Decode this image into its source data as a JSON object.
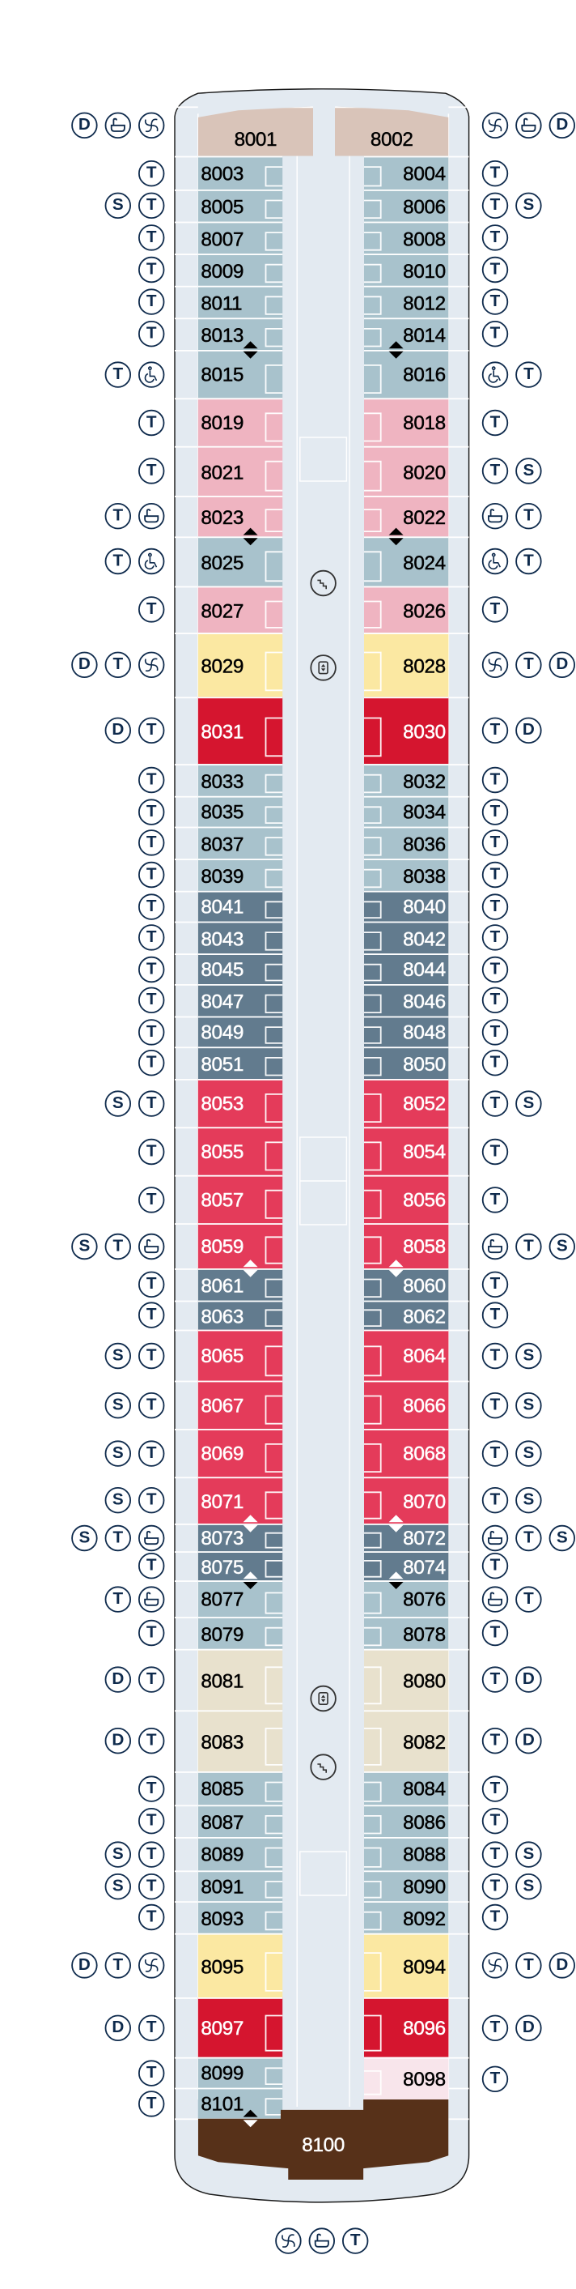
{
  "categories": {
    "tan": "#d9c4b9",
    "blue": "#a8c2cc",
    "pink": "#efb4c1",
    "yellow": "#fbe8a2",
    "crimson": "#d5152f",
    "slate": "#627b8e",
    "red": "#e43b5a",
    "beige": "#e8e1cd",
    "palepink": "#f8e5eb",
    "brown": "#573119"
  },
  "hull_color": "#e3eaf1",
  "icon_color": "#0e2a4c",
  "amenity_labels": {
    "D": "D",
    "T": "T",
    "S": "S"
  },
  "rows": [
    {
      "left": {
        "number": "8001",
        "category": "tan",
        "amenities": [
          "D",
          "bath",
          "spa"
        ]
      },
      "right": {
        "number": "8002",
        "category": "tan",
        "amenities": [
          "spa",
          "bath",
          "D"
        ]
      }
    },
    {
      "left": {
        "number": "8003",
        "category": "blue",
        "amenities": [
          "T"
        ]
      },
      "right": {
        "number": "8004",
        "category": "blue",
        "amenities": [
          "T"
        ]
      }
    },
    {
      "left": {
        "number": "8005",
        "category": "blue",
        "amenities": [
          "S",
          "T"
        ]
      },
      "right": {
        "number": "8006",
        "category": "blue",
        "amenities": [
          "T",
          "S"
        ]
      }
    },
    {
      "left": {
        "number": "8007",
        "category": "blue",
        "amenities": [
          "T"
        ]
      },
      "right": {
        "number": "8008",
        "category": "blue",
        "amenities": [
          "T"
        ]
      }
    },
    {
      "left": {
        "number": "8009",
        "category": "blue",
        "amenities": [
          "T"
        ]
      },
      "right": {
        "number": "8010",
        "category": "blue",
        "amenities": [
          "T"
        ]
      }
    },
    {
      "left": {
        "number": "8011",
        "category": "blue",
        "amenities": [
          "T"
        ]
      },
      "right": {
        "number": "8012",
        "category": "blue",
        "amenities": [
          "T"
        ]
      }
    },
    {
      "left": {
        "number": "8013",
        "category": "blue",
        "amenities": [
          "T"
        ]
      },
      "right": {
        "number": "8014",
        "category": "blue",
        "amenities": [
          "T"
        ]
      }
    },
    {
      "left": {
        "number": "8015",
        "category": "blue",
        "amenities": [
          "T",
          "wheelchair"
        ]
      },
      "right": {
        "number": "8016",
        "category": "blue",
        "amenities": [
          "wheelchair",
          "T"
        ]
      }
    },
    {
      "left": {
        "number": "8019",
        "category": "pink",
        "amenities": [
          "T"
        ]
      },
      "right": {
        "number": "8018",
        "category": "pink",
        "amenities": [
          "T"
        ]
      }
    },
    {
      "left": {
        "number": "8021",
        "category": "pink",
        "amenities": [
          "T"
        ]
      },
      "right": {
        "number": "8020",
        "category": "pink",
        "amenities": [
          "T",
          "S"
        ]
      }
    },
    {
      "left": {
        "number": "8023",
        "category": "pink",
        "amenities": [
          "T",
          "bath"
        ]
      },
      "right": {
        "number": "8022",
        "category": "pink",
        "amenities": [
          "bath",
          "T"
        ]
      }
    },
    {
      "left": {
        "number": "8025",
        "category": "blue",
        "amenities": [
          "T",
          "wheelchair"
        ]
      },
      "right": {
        "number": "8024",
        "category": "blue",
        "amenities": [
          "wheelchair",
          "T"
        ]
      }
    },
    {
      "left": {
        "number": "8027",
        "category": "pink",
        "amenities": [
          "T"
        ]
      },
      "right": {
        "number": "8026",
        "category": "pink",
        "amenities": [
          "T"
        ]
      }
    },
    {
      "left": {
        "number": "8029",
        "category": "yellow",
        "amenities": [
          "D",
          "T",
          "spa"
        ]
      },
      "right": {
        "number": "8028",
        "category": "yellow",
        "amenities": [
          "spa",
          "T",
          "D"
        ]
      }
    },
    {
      "left": {
        "number": "8031",
        "category": "crimson",
        "amenities": [
          "D",
          "T"
        ]
      },
      "right": {
        "number": "8030",
        "category": "crimson",
        "amenities": [
          "T",
          "D"
        ]
      }
    },
    {
      "left": {
        "number": "8033",
        "category": "blue",
        "amenities": [
          "T"
        ]
      },
      "right": {
        "number": "8032",
        "category": "blue",
        "amenities": [
          "T"
        ]
      }
    },
    {
      "left": {
        "number": "8035",
        "category": "blue",
        "amenities": [
          "T"
        ]
      },
      "right": {
        "number": "8034",
        "category": "blue",
        "amenities": [
          "T"
        ]
      }
    },
    {
      "left": {
        "number": "8037",
        "category": "blue",
        "amenities": [
          "T"
        ]
      },
      "right": {
        "number": "8036",
        "category": "blue",
        "amenities": [
          "T"
        ]
      }
    },
    {
      "left": {
        "number": "8039",
        "category": "blue",
        "amenities": [
          "T"
        ]
      },
      "right": {
        "number": "8038",
        "category": "blue",
        "amenities": [
          "T"
        ]
      }
    },
    {
      "left": {
        "number": "8041",
        "category": "slate",
        "amenities": [
          "T"
        ]
      },
      "right": {
        "number": "8040",
        "category": "slate",
        "amenities": [
          "T"
        ]
      }
    },
    {
      "left": {
        "number": "8043",
        "category": "slate",
        "amenities": [
          "T"
        ]
      },
      "right": {
        "number": "8042",
        "category": "slate",
        "amenities": [
          "T"
        ]
      }
    },
    {
      "left": {
        "number": "8045",
        "category": "slate",
        "amenities": [
          "T"
        ]
      },
      "right": {
        "number": "8044",
        "category": "slate",
        "amenities": [
          "T"
        ]
      }
    },
    {
      "left": {
        "number": "8047",
        "category": "slate",
        "amenities": [
          "T"
        ]
      },
      "right": {
        "number": "8046",
        "category": "slate",
        "amenities": [
          "T"
        ]
      }
    },
    {
      "left": {
        "number": "8049",
        "category": "slate",
        "amenities": [
          "T"
        ]
      },
      "right": {
        "number": "8048",
        "category": "slate",
        "amenities": [
          "T"
        ]
      }
    },
    {
      "left": {
        "number": "8051",
        "category": "slate",
        "amenities": [
          "T"
        ]
      },
      "right": {
        "number": "8050",
        "category": "slate",
        "amenities": [
          "T"
        ]
      }
    },
    {
      "left": {
        "number": "8053",
        "category": "red",
        "amenities": [
          "S",
          "T"
        ]
      },
      "right": {
        "number": "8052",
        "category": "red",
        "amenities": [
          "T",
          "S"
        ]
      }
    },
    {
      "left": {
        "number": "8055",
        "category": "red",
        "amenities": [
          "T"
        ]
      },
      "right": {
        "number": "8054",
        "category": "red",
        "amenities": [
          "T"
        ]
      }
    },
    {
      "left": {
        "number": "8057",
        "category": "red",
        "amenities": [
          "T"
        ]
      },
      "right": {
        "number": "8056",
        "category": "red",
        "amenities": [
          "T"
        ]
      }
    },
    {
      "left": {
        "number": "8059",
        "category": "red",
        "amenities": [
          "S",
          "T",
          "bath"
        ]
      },
      "right": {
        "number": "8058",
        "category": "red",
        "amenities": [
          "bath",
          "T",
          "S"
        ]
      }
    },
    {
      "left": {
        "number": "8061",
        "category": "slate",
        "amenities": [
          "T"
        ]
      },
      "right": {
        "number": "8060",
        "category": "slate",
        "amenities": [
          "T"
        ]
      }
    },
    {
      "left": {
        "number": "8063",
        "category": "slate",
        "amenities": [
          "T"
        ]
      },
      "right": {
        "number": "8062",
        "category": "slate",
        "amenities": [
          "T"
        ]
      }
    },
    {
      "left": {
        "number": "8065",
        "category": "red",
        "amenities": [
          "S",
          "T"
        ]
      },
      "right": {
        "number": "8064",
        "category": "red",
        "amenities": [
          "T",
          "S"
        ]
      }
    },
    {
      "left": {
        "number": "8067",
        "category": "red",
        "amenities": [
          "S",
          "T"
        ]
      },
      "right": {
        "number": "8066",
        "category": "red",
        "amenities": [
          "T",
          "S"
        ]
      }
    },
    {
      "left": {
        "number": "8069",
        "category": "red",
        "amenities": [
          "S",
          "T"
        ]
      },
      "right": {
        "number": "8068",
        "category": "red",
        "amenities": [
          "T",
          "S"
        ]
      }
    },
    {
      "left": {
        "number": "8071",
        "category": "red",
        "amenities": [
          "S",
          "T"
        ]
      },
      "right": {
        "number": "8070",
        "category": "red",
        "amenities": [
          "T",
          "S"
        ]
      }
    },
    {
      "left": {
        "number": "8073",
        "category": "slate",
        "amenities": [
          "S",
          "T",
          "bath"
        ]
      },
      "right": {
        "number": "8072",
        "category": "slate",
        "amenities": [
          "bath",
          "T",
          "S"
        ]
      }
    },
    {
      "left": {
        "number": "8075",
        "category": "slate",
        "amenities": [
          "T"
        ]
      },
      "right": {
        "number": "8074",
        "category": "slate",
        "amenities": [
          "T"
        ]
      }
    },
    {
      "left": {
        "number": "8077",
        "category": "blue",
        "amenities": [
          "T",
          "bath"
        ]
      },
      "right": {
        "number": "8076",
        "category": "blue",
        "amenities": [
          "bath",
          "T"
        ]
      }
    },
    {
      "left": {
        "number": "8079",
        "category": "blue",
        "amenities": [
          "T"
        ]
      },
      "right": {
        "number": "8078",
        "category": "blue",
        "amenities": [
          "T"
        ]
      }
    },
    {
      "left": {
        "number": "8081",
        "category": "beige",
        "amenities": [
          "D",
          "T"
        ]
      },
      "right": {
        "number": "8080",
        "category": "beige",
        "amenities": [
          "T",
          "D"
        ]
      }
    },
    {
      "left": {
        "number": "8083",
        "category": "beige",
        "amenities": [
          "D",
          "T"
        ]
      },
      "right": {
        "number": "8082",
        "category": "beige",
        "amenities": [
          "T",
          "D"
        ]
      }
    },
    {
      "left": {
        "number": "8085",
        "category": "blue",
        "amenities": [
          "T"
        ]
      },
      "right": {
        "number": "8084",
        "category": "blue",
        "amenities": [
          "T"
        ]
      }
    },
    {
      "left": {
        "number": "8087",
        "category": "blue",
        "amenities": [
          "T"
        ]
      },
      "right": {
        "number": "8086",
        "category": "blue",
        "amenities": [
          "T"
        ]
      }
    },
    {
      "left": {
        "number": "8089",
        "category": "blue",
        "amenities": [
          "S",
          "T"
        ]
      },
      "right": {
        "number": "8088",
        "category": "blue",
        "amenities": [
          "T",
          "S"
        ]
      }
    },
    {
      "left": {
        "number": "8091",
        "category": "blue",
        "amenities": [
          "S",
          "T"
        ]
      },
      "right": {
        "number": "8090",
        "category": "blue",
        "amenities": [
          "T",
          "S"
        ]
      }
    },
    {
      "left": {
        "number": "8093",
        "category": "blue",
        "amenities": [
          "T"
        ]
      },
      "right": {
        "number": "8092",
        "category": "blue",
        "amenities": [
          "T"
        ]
      }
    },
    {
      "left": {
        "number": "8095",
        "category": "yellow",
        "amenities": [
          "D",
          "T",
          "spa"
        ]
      },
      "right": {
        "number": "8094",
        "category": "yellow",
        "amenities": [
          "spa",
          "T",
          "D"
        ]
      }
    },
    {
      "left": {
        "number": "8097",
        "category": "crimson",
        "amenities": [
          "D",
          "T"
        ]
      },
      "right": {
        "number": "8096",
        "category": "crimson",
        "amenities": [
          "T",
          "D"
        ]
      }
    },
    {
      "left": {
        "number": "8099",
        "category": "blue",
        "amenities": [
          "T"
        ]
      },
      "right": {
        "number": "8098",
        "category": "palepink",
        "amenities": [
          "T"
        ]
      }
    },
    {
      "left": {
        "number": "8101",
        "category": "blue",
        "amenities": [
          "T"
        ]
      },
      "right": null
    }
  ],
  "aft_suite": {
    "number": "8100",
    "category": "brown",
    "amenities": [
      "spa",
      "bath",
      "T"
    ]
  }
}
